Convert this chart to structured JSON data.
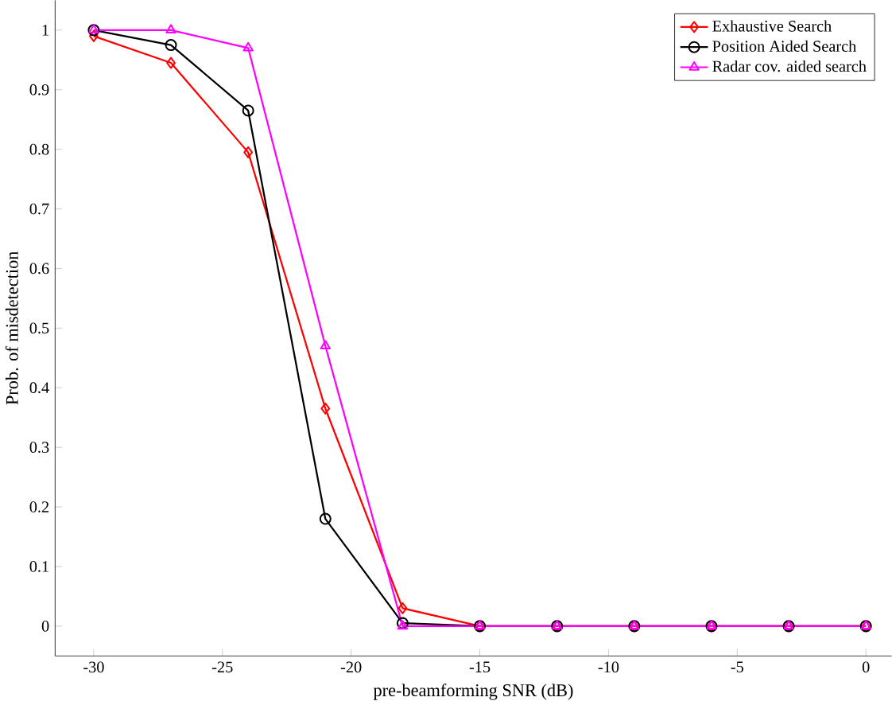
{
  "chart_data": {
    "type": "line",
    "xlabel": "pre-beamforming SNR (dB)",
    "ylabel": "Prob. of misdetection",
    "x": [
      -30,
      -27,
      -24,
      -21,
      -18,
      -15,
      -12,
      -9,
      -6,
      -3,
      0
    ],
    "series": [
      {
        "name": "Exhaustive Search",
        "color": "#ff0000",
        "marker": "diamond",
        "values": [
          0.99,
          0.945,
          0.795,
          0.365,
          0.03,
          0,
          0,
          0,
          0,
          0,
          0
        ]
      },
      {
        "name": "Position Aided Search",
        "color": "#000000",
        "marker": "circle",
        "values": [
          1,
          0.975,
          0.865,
          0.18,
          0.005,
          0,
          0,
          0,
          0,
          0,
          0
        ]
      },
      {
        "name": "Radar cov. aided search",
        "color": "#ff00ff",
        "marker": "triangle",
        "values": [
          1,
          1,
          0.97,
          0.47,
          0,
          0,
          0,
          0,
          0,
          0,
          0
        ]
      }
    ],
    "xlim": [
      -31.5,
      1
    ],
    "ylim": [
      -0.05,
      1.05
    ],
    "xticks": [
      -30,
      -25,
      -20,
      -15,
      -10,
      -5,
      0
    ],
    "yticks": [
      0,
      0.1,
      0.2,
      0.3,
      0.4,
      0.5,
      0.6,
      0.7,
      0.8,
      0.9,
      1
    ],
    "grid": false,
    "legend": "top right",
    "line_style": "solid"
  }
}
